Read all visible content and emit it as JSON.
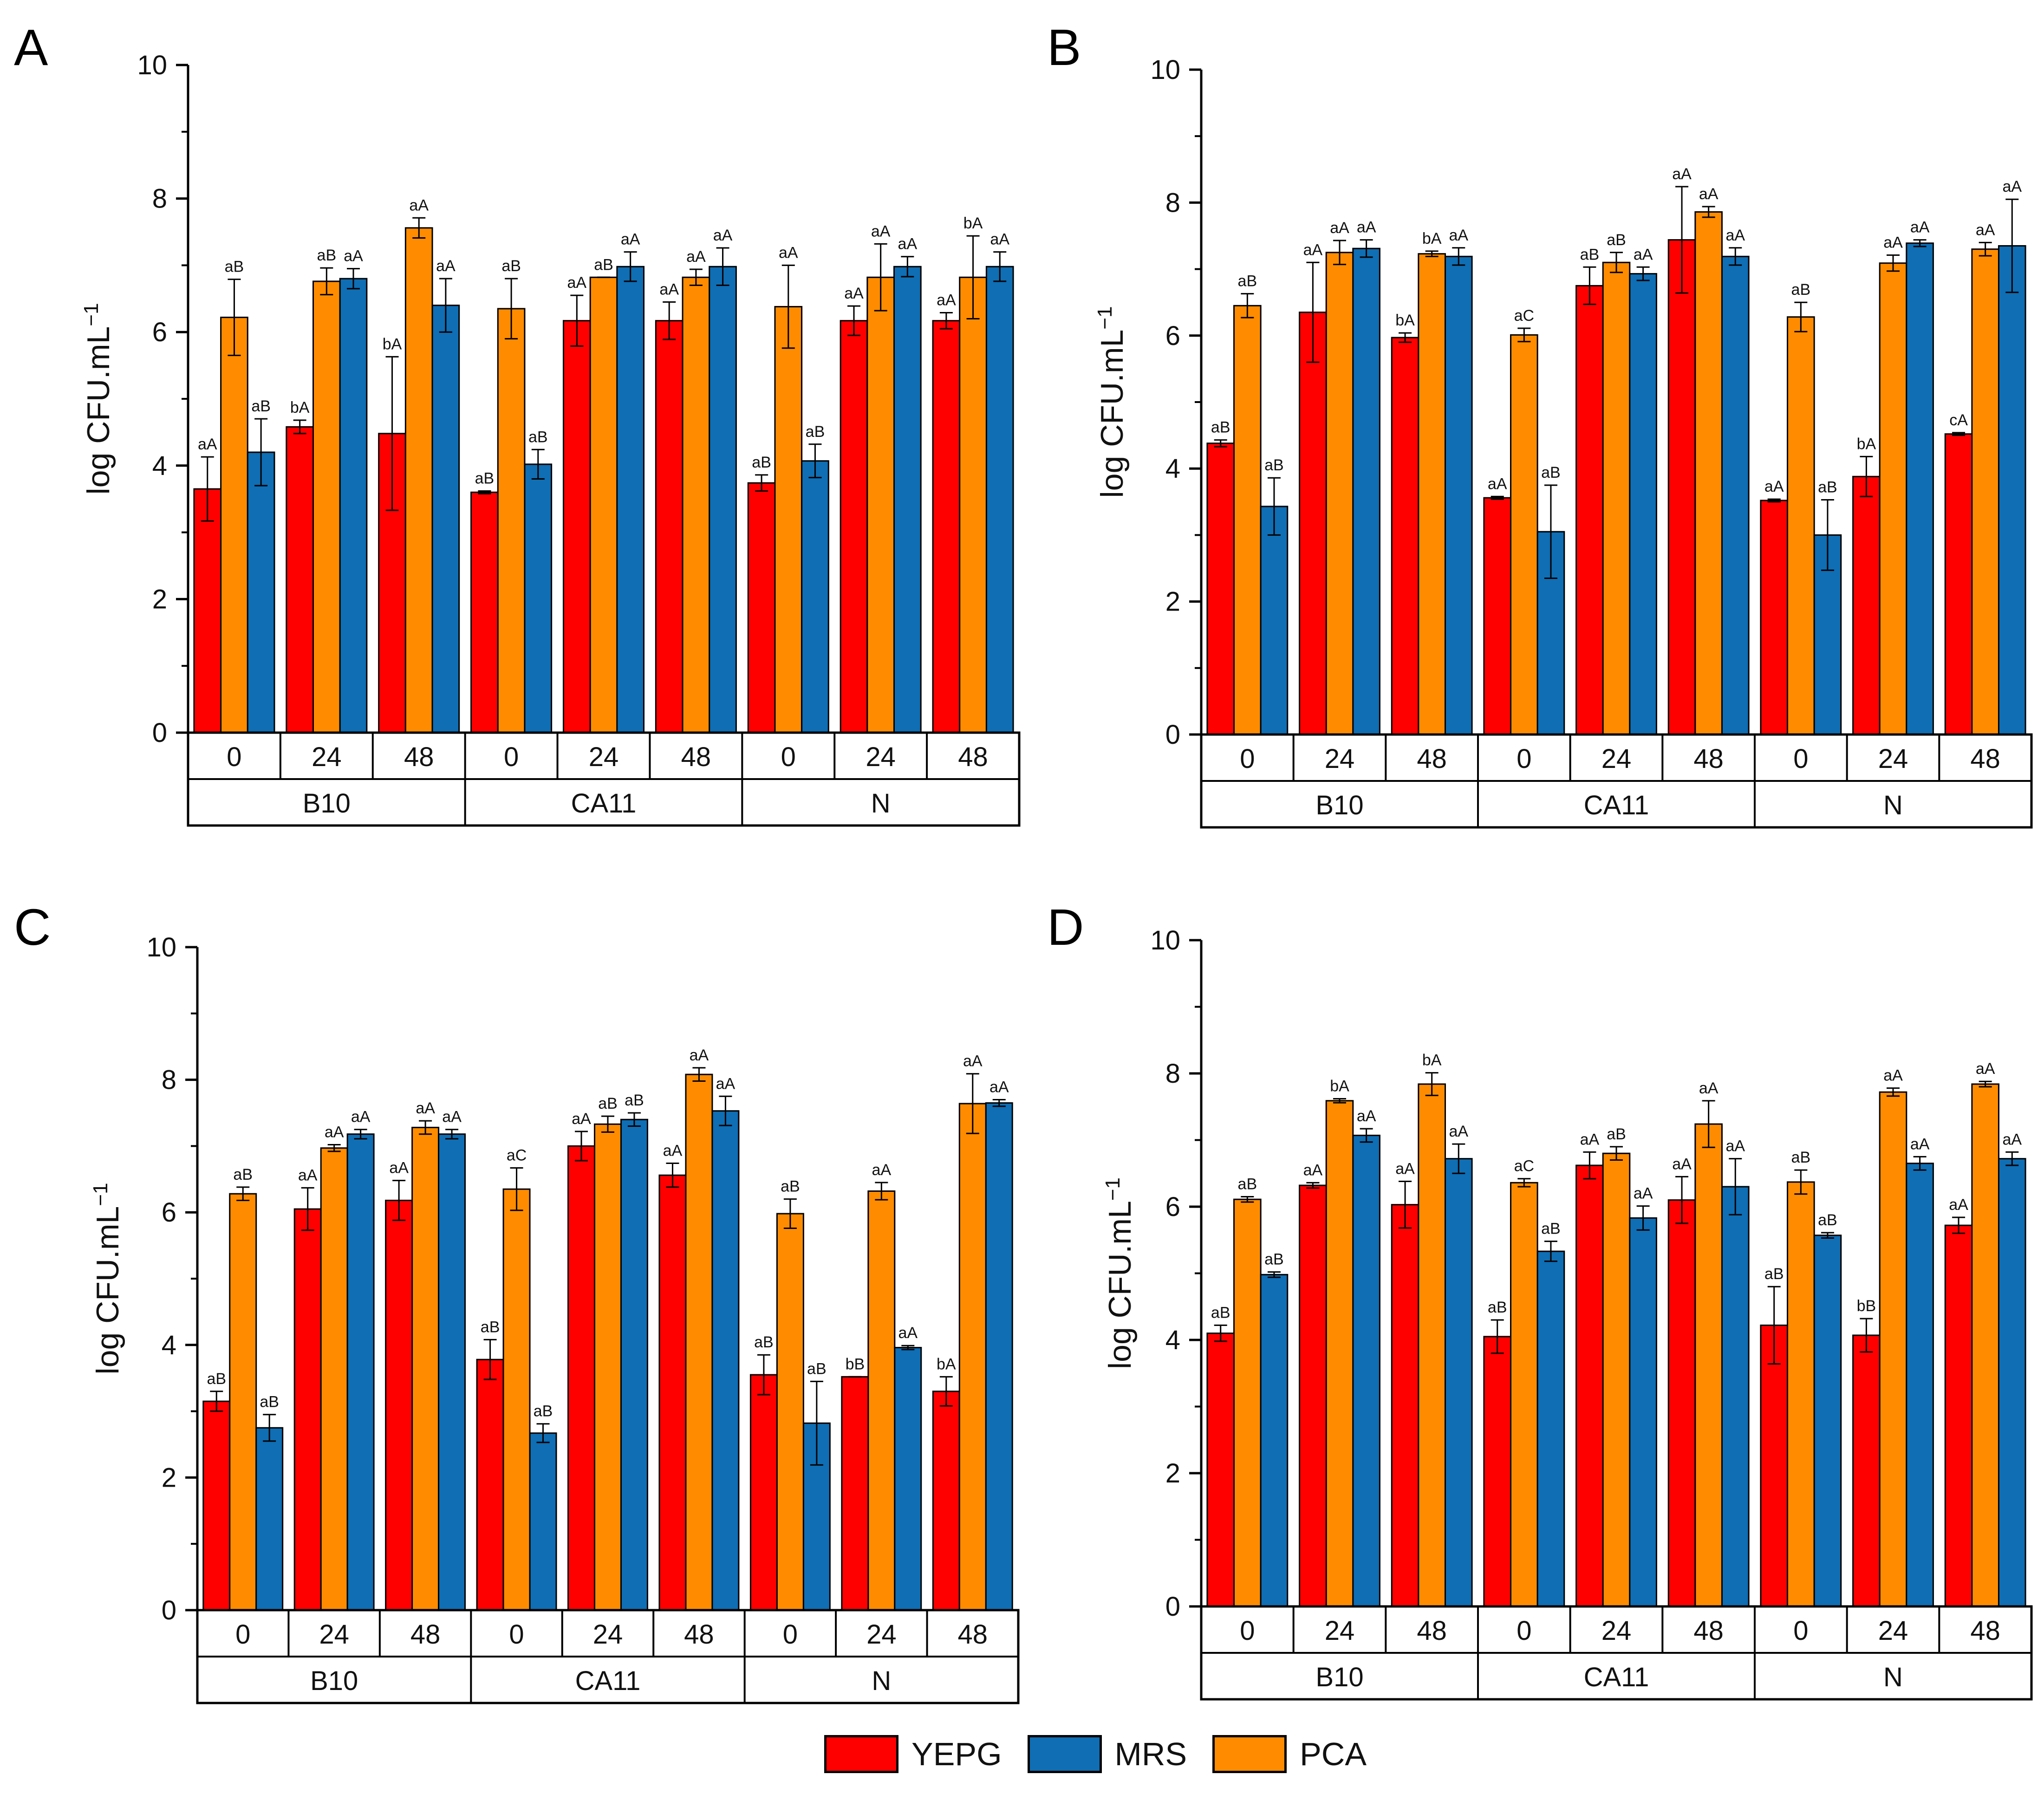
{
  "figure": {
    "colors": {
      "YEPG": "#ff0000",
      "PCA": "#ff8c00",
      "MRS": "#0f6eb4"
    },
    "series_order": [
      "YEPG",
      "PCA",
      "MRS"
    ]
  },
  "legend": {
    "items": [
      {
        "name": "YEPG",
        "color": "#ff0000"
      },
      {
        "name": "MRS",
        "color": "#0f6eb4"
      },
      {
        "name": "PCA",
        "color": "#ff8c00"
      }
    ]
  },
  "chart_data": [
    {
      "panel": "A",
      "type": "bar",
      "ylabel": "log CFU.mL",
      "ylabel_sup": "−1",
      "ylim": [
        0,
        10
      ],
      "yticks": [
        0,
        2,
        4,
        6,
        8,
        10
      ],
      "categories": [
        "0",
        "24",
        "48",
        "0",
        "24",
        "48",
        "0",
        "24",
        "48"
      ],
      "groups": [
        "B10",
        "CA11",
        "N"
      ],
      "series": [
        {
          "name": "YEPG",
          "values": [
            3.65,
            4.58,
            4.48,
            3.6,
            6.17,
            6.17,
            3.74,
            6.17,
            6.17
          ],
          "errors": [
            0.48,
            0.1,
            1.15,
            0.02,
            0.38,
            0.28,
            0.12,
            0.22,
            0.12
          ],
          "labels": [
            "aA",
            "bA",
            "bA",
            "aB",
            "aA",
            "aA",
            "aB",
            "aA",
            "aA"
          ]
        },
        {
          "name": "PCA",
          "values": [
            6.22,
            6.76,
            7.56,
            6.35,
            6.82,
            6.82,
            6.38,
            6.82,
            6.82
          ],
          "errors": [
            0.57,
            0.2,
            0.15,
            0.45,
            0.0,
            0.12,
            0.62,
            0.5,
            0.62
          ],
          "labels": [
            "aB",
            "aB",
            "aA",
            "aB",
            "aB",
            "aA",
            "aA",
            "aA",
            "bA"
          ]
        },
        {
          "name": "MRS",
          "values": [
            4.2,
            6.8,
            6.4,
            4.02,
            6.98,
            6.98,
            4.07,
            6.98,
            6.98
          ],
          "errors": [
            0.5,
            0.15,
            0.4,
            0.22,
            0.22,
            0.28,
            0.25,
            0.15,
            0.22
          ],
          "labels": [
            "aB",
            "aA",
            "aA",
            "aB",
            "aA",
            "aA",
            "aB",
            "aA",
            "aA"
          ]
        }
      ]
    },
    {
      "panel": "B",
      "type": "bar",
      "ylabel": "log CFU.mL",
      "ylabel_sup": "−1",
      "ylim": [
        0,
        10
      ],
      "yticks": [
        0,
        2,
        4,
        6,
        8,
        10
      ],
      "categories": [
        "0",
        "24",
        "48",
        "0",
        "24",
        "48",
        "0",
        "24",
        "48"
      ],
      "groups": [
        "B10",
        "CA11",
        "N"
      ],
      "series": [
        {
          "name": "YEPG",
          "values": [
            4.38,
            6.35,
            5.97,
            3.56,
            6.75,
            7.44,
            3.52,
            3.88,
            4.52
          ],
          "errors": [
            0.05,
            0.75,
            0.07,
            0.02,
            0.28,
            0.8,
            0.02,
            0.3,
            0.02
          ],
          "labels": [
            "aB",
            "aA",
            "bA",
            "aA",
            "aB",
            "aA",
            "aA",
            "bA",
            "cA"
          ]
        },
        {
          "name": "PCA",
          "values": [
            6.45,
            7.25,
            7.23,
            6.01,
            7.1,
            7.86,
            6.28,
            7.09,
            7.3
          ],
          "errors": [
            0.18,
            0.18,
            0.04,
            0.1,
            0.15,
            0.08,
            0.22,
            0.12,
            0.1
          ],
          "labels": [
            "aB",
            "aA",
            "bA",
            "aC",
            "aB",
            "aA",
            "aB",
            "aA",
            "aA"
          ]
        },
        {
          "name": "MRS",
          "values": [
            3.43,
            7.31,
            7.19,
            3.05,
            6.93,
            7.19,
            3.0,
            7.39,
            7.35
          ],
          "errors": [
            0.43,
            0.13,
            0.13,
            0.7,
            0.1,
            0.13,
            0.53,
            0.05,
            0.7
          ],
          "labels": [
            "aB",
            "aA",
            "aA",
            "aB",
            "aA",
            "aA",
            "aB",
            "aA",
            "aA"
          ]
        }
      ]
    },
    {
      "panel": "C",
      "type": "bar",
      "ylabel": "log CFU.mL",
      "ylabel_sup": "−1",
      "ylim": [
        0,
        10
      ],
      "yticks": [
        0,
        2,
        4,
        6,
        8,
        10
      ],
      "categories": [
        "0",
        "24",
        "48",
        "0",
        "24",
        "48",
        "0",
        "24",
        "48"
      ],
      "groups": [
        "B10",
        "CA11",
        "N"
      ],
      "series": [
        {
          "name": "YEPG",
          "values": [
            3.15,
            6.05,
            6.18,
            3.78,
            7.0,
            6.56,
            3.55,
            3.52,
            3.3
          ],
          "errors": [
            0.15,
            0.32,
            0.3,
            0.3,
            0.22,
            0.18,
            0.3,
            0.0,
            0.22
          ],
          "labels": [
            "aB",
            "aA",
            "aA",
            "aB",
            "aA",
            "aA",
            "aB",
            "bB",
            "bA"
          ]
        },
        {
          "name": "PCA",
          "values": [
            6.28,
            6.97,
            7.28,
            6.35,
            7.33,
            8.08,
            5.98,
            6.32,
            7.64
          ],
          "errors": [
            0.1,
            0.05,
            0.1,
            0.32,
            0.12,
            0.1,
            0.22,
            0.13,
            0.45
          ],
          "labels": [
            "aB",
            "aA",
            "aA",
            "aC",
            "aB",
            "aA",
            "aB",
            "aA",
            "aA"
          ]
        },
        {
          "name": "MRS",
          "values": [
            2.75,
            7.18,
            7.18,
            2.67,
            7.4,
            7.53,
            2.82,
            3.96,
            7.65
          ],
          "errors": [
            0.2,
            0.07,
            0.07,
            0.14,
            0.1,
            0.22,
            0.63,
            0.03,
            0.05
          ],
          "labels": [
            "aB",
            "aA",
            "aA",
            "aB",
            "aB",
            "aA",
            "aB",
            "aA",
            "aA"
          ]
        }
      ]
    },
    {
      "panel": "D",
      "type": "bar",
      "ylabel": "log CFU.mL",
      "ylabel_sup": "−1",
      "ylim": [
        0,
        10
      ],
      "yticks": [
        0,
        2,
        4,
        6,
        8,
        10
      ],
      "categories": [
        "0",
        "24",
        "48",
        "0",
        "24",
        "48",
        "0",
        "24",
        "48"
      ],
      "groups": [
        "B10",
        "CA11",
        "N"
      ],
      "series": [
        {
          "name": "YEPG",
          "values": [
            4.1,
            6.32,
            6.03,
            4.05,
            6.62,
            6.1,
            4.22,
            4.07,
            5.72
          ],
          "errors": [
            0.12,
            0.04,
            0.35,
            0.25,
            0.2,
            0.35,
            0.58,
            0.25,
            0.12
          ],
          "labels": [
            "aB",
            "aA",
            "aA",
            "aB",
            "aA",
            "aA",
            "aB",
            "bB",
            "aA"
          ]
        },
        {
          "name": "PCA",
          "values": [
            6.11,
            7.59,
            7.84,
            6.36,
            6.8,
            7.24,
            6.37,
            7.72,
            7.84
          ],
          "errors": [
            0.04,
            0.03,
            0.17,
            0.06,
            0.1,
            0.35,
            0.18,
            0.06,
            0.04
          ],
          "labels": [
            "aB",
            "bA",
            "bA",
            "aC",
            "aB",
            "aA",
            "aB",
            "aA",
            "aA"
          ]
        },
        {
          "name": "MRS",
          "values": [
            4.98,
            7.07,
            6.72,
            5.33,
            5.83,
            6.3,
            5.57,
            6.65,
            6.72
          ],
          "errors": [
            0.04,
            0.1,
            0.22,
            0.15,
            0.18,
            0.42,
            0.04,
            0.1,
            0.1
          ],
          "labels": [
            "aB",
            "aA",
            "aA",
            "aB",
            "aA",
            "aA",
            "aB",
            "aA",
            "aA"
          ]
        }
      ]
    }
  ]
}
